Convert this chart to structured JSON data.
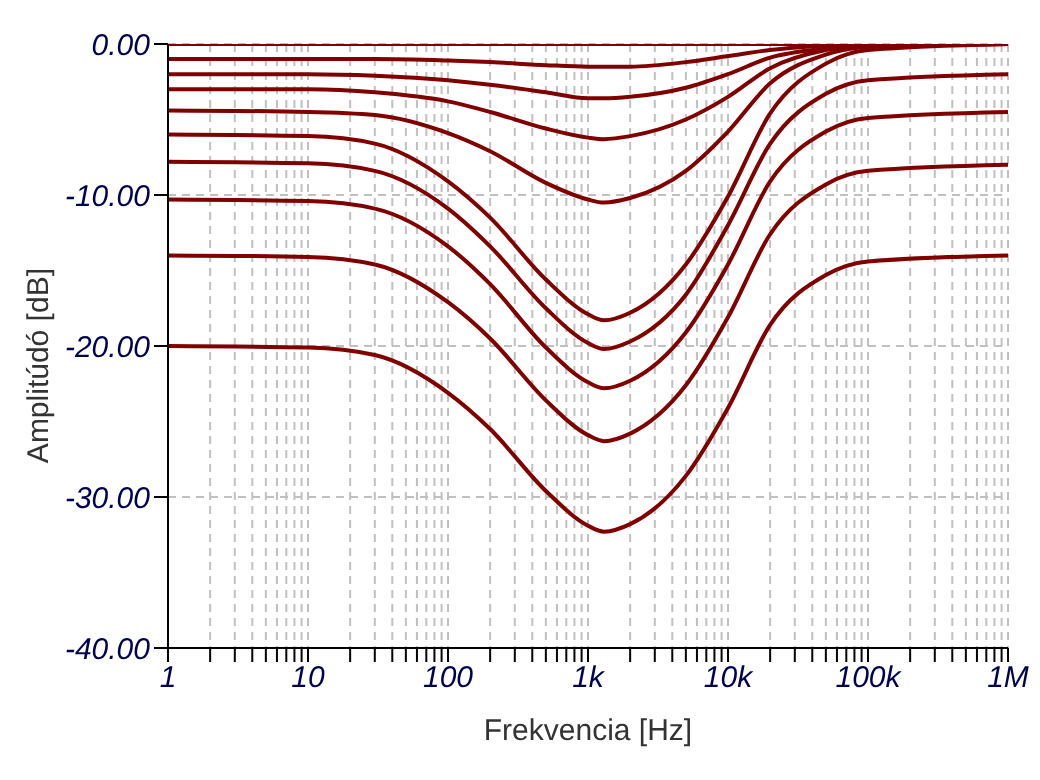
{
  "chart_data": {
    "type": "line",
    "xlabel": "Frekvencia [Hz]",
    "ylabel": "Amplitúdó [dB]",
    "log": "x",
    "grid": true,
    "x": [
      1,
      10,
      30,
      100,
      200,
      500,
      1000,
      1300,
      2000,
      5000,
      10000,
      20000,
      50000,
      100000,
      1000000
    ],
    "xlim": [
      1,
      1000000
    ],
    "xticks": [
      {
        "value": 1,
        "label": "1"
      },
      {
        "value": 2,
        "label": null
      },
      {
        "value": 3,
        "label": null
      },
      {
        "value": 4,
        "label": null
      },
      {
        "value": 5,
        "label": null
      },
      {
        "value": 6,
        "label": null
      },
      {
        "value": 7,
        "label": null
      },
      {
        "value": 8,
        "label": null
      },
      {
        "value": 9,
        "label": null
      },
      {
        "value": 10,
        "label": "10"
      },
      {
        "value": 20,
        "label": null
      },
      {
        "value": 30,
        "label": null
      },
      {
        "value": 40,
        "label": null
      },
      {
        "value": 50,
        "label": null
      },
      {
        "value": 60,
        "label": null
      },
      {
        "value": 70,
        "label": null
      },
      {
        "value": 80,
        "label": null
      },
      {
        "value": 90,
        "label": null
      },
      {
        "value": 100,
        "label": "100"
      },
      {
        "value": 200,
        "label": null
      },
      {
        "value": 300,
        "label": null
      },
      {
        "value": 400,
        "label": null
      },
      {
        "value": 500,
        "label": null
      },
      {
        "value": 600,
        "label": null
      },
      {
        "value": 700,
        "label": null
      },
      {
        "value": 800,
        "label": null
      },
      {
        "value": 900,
        "label": null
      },
      {
        "value": 1000,
        "label": "1k"
      },
      {
        "value": 2000,
        "label": null
      },
      {
        "value": 3000,
        "label": null
      },
      {
        "value": 4000,
        "label": null
      },
      {
        "value": 5000,
        "label": null
      },
      {
        "value": 6000,
        "label": null
      },
      {
        "value": 7000,
        "label": null
      },
      {
        "value": 8000,
        "label": null
      },
      {
        "value": 9000,
        "label": null
      },
      {
        "value": 10000,
        "label": "10k"
      },
      {
        "value": 20000,
        "label": null
      },
      {
        "value": 30000,
        "label": null
      },
      {
        "value": 40000,
        "label": null
      },
      {
        "value": 50000,
        "label": null
      },
      {
        "value": 60000,
        "label": null
      },
      {
        "value": 70000,
        "label": null
      },
      {
        "value": 80000,
        "label": null
      },
      {
        "value": 90000,
        "label": null
      },
      {
        "value": 100000,
        "label": "100k"
      },
      {
        "value": 200000,
        "label": null
      },
      {
        "value": 300000,
        "label": null
      },
      {
        "value": 400000,
        "label": null
      },
      {
        "value": 500000,
        "label": null
      },
      {
        "value": 600000,
        "label": null
      },
      {
        "value": 700000,
        "label": null
      },
      {
        "value": 800000,
        "label": null
      },
      {
        "value": 900000,
        "label": null
      },
      {
        "value": 1000000,
        "label": "1M"
      }
    ],
    "ylim": [
      -40,
      0
    ],
    "yticks": [
      {
        "value": 0,
        "label": "0.00"
      },
      {
        "value": -10,
        "label": "-10.00"
      },
      {
        "value": -20,
        "label": "-20.00"
      },
      {
        "value": -30,
        "label": "-30.00"
      },
      {
        "value": -40,
        "label": "-40.00"
      }
    ],
    "series": [
      {
        "color": "#800000",
        "values": [
          0,
          0,
          0,
          0,
          0,
          0,
          0,
          0,
          0,
          0,
          0,
          0,
          0,
          0,
          0
        ]
      },
      {
        "color": "#800000",
        "values": [
          -1,
          -1.0,
          -1.0,
          -1.1,
          -1.2,
          -1.4,
          -1.5,
          -1.5,
          -1.5,
          -1.2,
          -0.8,
          -0.4,
          -0.1,
          0,
          0
        ]
      },
      {
        "color": "#800000",
        "values": [
          -2,
          -2.0,
          -2.1,
          -2.4,
          -2.7,
          -3.2,
          -3.6,
          -3.6,
          -3.5,
          -2.9,
          -2.0,
          -0.9,
          -0.3,
          -0.1,
          0
        ]
      },
      {
        "color": "#800000",
        "values": [
          -3,
          -3.0,
          -3.2,
          -3.8,
          -4.5,
          -5.6,
          -6.2,
          -6.3,
          -6.1,
          -5.0,
          -3.5,
          -1.6,
          -0.4,
          -0.1,
          0
        ]
      },
      {
        "color": "#800000",
        "values": [
          -4.4,
          -4.5,
          -4.7,
          -5.9,
          -7.1,
          -9.2,
          -10.3,
          -10.5,
          -10.2,
          -8.4,
          -5.8,
          -2.6,
          -0.7,
          -0.2,
          0
        ]
      },
      {
        "color": "#800000",
        "values": [
          -6,
          -6.1,
          -6.6,
          -9.1,
          -11.5,
          -15.6,
          -17.9,
          -18.3,
          -17.8,
          -14.6,
          -10.1,
          -4.6,
          -1.3,
          -0.4,
          0
        ]
      },
      {
        "color": "#800000",
        "values": [
          -7.8,
          -7.9,
          -8.4,
          -10.9,
          -13.4,
          -17.5,
          -19.8,
          -20.2,
          -19.7,
          -16.6,
          -12.0,
          -6.6,
          -3.3,
          -2.4,
          -2
        ]
      },
      {
        "color": "#800000",
        "values": [
          -10.3,
          -10.4,
          -10.9,
          -13.4,
          -15.9,
          -20.1,
          -22.4,
          -22.8,
          -22.3,
          -19.1,
          -14.6,
          -9.1,
          -5.8,
          -4.9,
          -4.5
        ]
      },
      {
        "color": "#800000",
        "values": [
          -14,
          -14.1,
          -14.6,
          -17.1,
          -19.5,
          -23.6,
          -25.9,
          -26.3,
          -25.8,
          -22.6,
          -18.1,
          -12.6,
          -9.3,
          -8.4,
          -8
        ]
      },
      {
        "color": "#800000",
        "values": [
          -20,
          -20.1,
          -20.6,
          -23.1,
          -25.5,
          -29.6,
          -31.9,
          -32.3,
          -31.8,
          -28.6,
          -24.1,
          -18.6,
          -15.3,
          -14.4,
          -14
        ]
      }
    ]
  }
}
